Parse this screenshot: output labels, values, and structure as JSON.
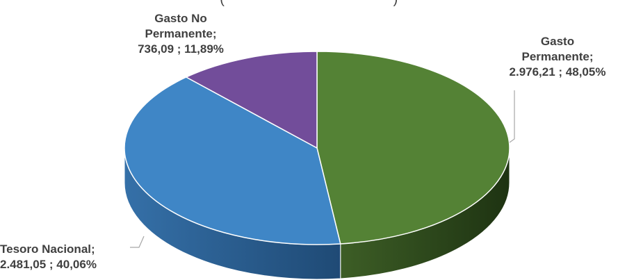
{
  "chart_data": {
    "type": "pie",
    "title_fragment": "(",
    "title_fragment_end": ")",
    "slices": [
      {
        "label_lines": [
          "Gasto",
          "Permanente;",
          "2.976,21 ; 48,05%"
        ],
        "value": 2976.21,
        "percent": 48.05,
        "color": "#548235",
        "side_color": "#2f4a1d"
      },
      {
        "label_lines": [
          "Tesoro Nacional;",
          "2.481,05 ; 40,06%"
        ],
        "value": 2481.05,
        "percent": 40.06,
        "color": "#3f86c6",
        "side_color": "#2a5f91"
      },
      {
        "label_lines": [
          "Gasto No",
          "Permanente;",
          "736,09 ; 11,89%"
        ],
        "value": 736.09,
        "percent": 11.89,
        "color": "#724d9a",
        "side_color": "#4e3370"
      }
    ],
    "style": "3d-pie"
  }
}
